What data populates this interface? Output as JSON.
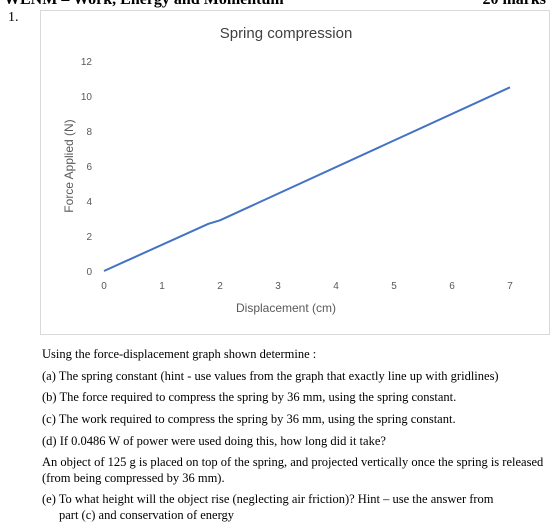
{
  "page": {
    "header_text": "WENM – Work, Energy and Momentum",
    "marks_text": "20 marks",
    "question_number": "1."
  },
  "chart_data": {
    "type": "line",
    "title": "Spring compression",
    "xlabel": "Displacement (cm)",
    "ylabel": "Force Applied (N)",
    "xlim": [
      0,
      7
    ],
    "ylim": [
      0,
      12
    ],
    "xticks": [
      0,
      1,
      2,
      3,
      4,
      5,
      6,
      7
    ],
    "yticks": [
      0,
      2,
      4,
      6,
      8,
      10,
      12
    ],
    "grid": false,
    "series": [
      {
        "color": "#4472C4",
        "x": [
          0,
          1.8,
          2.0,
          7.0
        ],
        "y": [
          0,
          2.7,
          2.9,
          10.5
        ]
      }
    ]
  },
  "text": {
    "intro": "Using the force-displacement graph shown determine :",
    "a": "(a) The spring constant (hint - use values from the graph that exactly line up with gridlines)",
    "b": "(b) The force required to compress the spring by 36 mm, using the spring constant.",
    "c": "(c) The work required to compress the spring by 36 mm, using the spring constant.",
    "d": "(d)  If 0.0486 W of power were used doing this, how long did it take?",
    "obj": "An object of 125 g is placed on top of the spring, and projected vertically once the spring is released (from being compressed by 36 mm).",
    "e_line1": "(e) To what height will the object rise (neglecting air friction)? Hint – use the answer from",
    "e_line2": "part (c) and conservation of energy"
  }
}
